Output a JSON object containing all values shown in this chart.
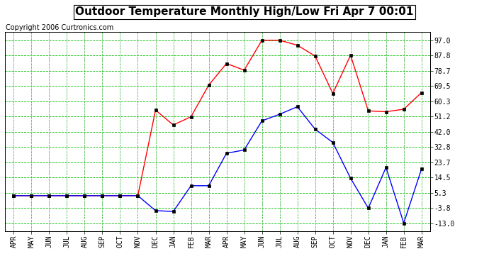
{
  "title": "Outdoor Temperature Monthly High/Low Fri Apr 7 00:01",
  "copyright": "Copyright 2006 Curtronics.com",
  "months": [
    "APR",
    "MAY",
    "JUN",
    "JUL",
    "AUG",
    "SEP",
    "OCT",
    "NOV",
    "DEC",
    "JAN",
    "FEB",
    "MAR",
    "APR",
    "MAY",
    "JUN",
    "JUL",
    "AUG",
    "SEP",
    "OCT",
    "NOV",
    "DEC",
    "JAN",
    "FEB",
    "MAR"
  ],
  "high_temps": [
    3.5,
    3.5,
    3.5,
    3.5,
    3.5,
    3.5,
    3.5,
    3.5,
    55.0,
    46.0,
    51.0,
    70.0,
    83.0,
    79.0,
    97.0,
    97.0,
    94.0,
    87.5,
    65.0,
    88.0,
    54.5,
    54.0,
    55.5,
    65.5
  ],
  "low_temps": [
    3.5,
    3.5,
    3.5,
    3.5,
    3.5,
    3.5,
    3.5,
    3.5,
    -5.5,
    -6.0,
    9.5,
    9.5,
    29.0,
    31.0,
    48.5,
    52.5,
    57.0,
    43.5,
    35.5,
    14.0,
    -4.0,
    20.5,
    -13.0,
    19.5
  ],
  "ytick_vals": [
    97.0,
    87.8,
    78.7,
    69.5,
    60.3,
    51.2,
    42.0,
    32.8,
    23.7,
    14.5,
    5.3,
    -3.8,
    -13.0
  ],
  "ytick_labels": [
    "97.0",
    "87.8",
    "78.7",
    "69.5",
    "60.3",
    "51.2",
    "42.0",
    "32.8",
    "23.7",
    "14.5",
    "5.3",
    "-3.8",
    "-13.0"
  ],
  "ymin": -18.0,
  "ymax": 102.0,
  "high_color": "red",
  "low_color": "blue",
  "grid_color": "#00bb00",
  "bg_color": "white",
  "title_fontsize": 11,
  "copyright_fontsize": 7
}
